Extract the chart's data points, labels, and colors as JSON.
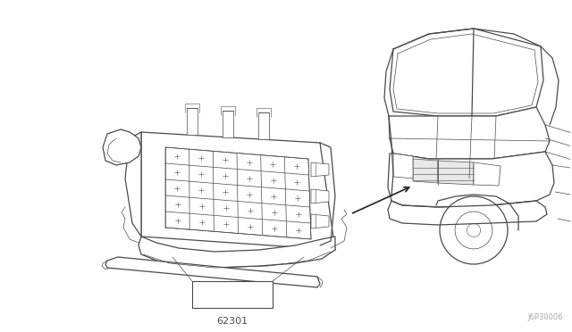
{
  "background_color": "#ffffff",
  "line_color": "#4a4a4a",
  "label_62301": "62301",
  "watermark": "J6P30006",
  "fig_width": 6.4,
  "fig_height": 3.72,
  "dpi": 100,
  "lw_main": 0.9,
  "lw_thin": 0.5,
  "lw_detail": 0.4
}
